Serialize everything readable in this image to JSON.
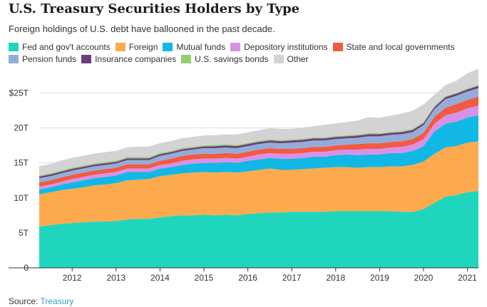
{
  "title": "U.S. Treasury Securities Holders by Type",
  "subtitle": "Foreign holdings of U.S. debt have ballooned in the past decade.",
  "source": {
    "label": "Source:",
    "link": "Treasury"
  },
  "chart_data": {
    "type": "area",
    "stacked": true,
    "x": [
      2011.25,
      2011.5,
      2011.75,
      2012.0,
      2012.25,
      2012.5,
      2012.75,
      2013.0,
      2013.25,
      2013.5,
      2013.75,
      2014.0,
      2014.25,
      2014.5,
      2014.75,
      2015.0,
      2015.25,
      2015.5,
      2015.75,
      2016.0,
      2016.25,
      2016.5,
      2016.75,
      2017.0,
      2017.25,
      2017.5,
      2017.75,
      2018.0,
      2018.25,
      2018.5,
      2018.75,
      2019.0,
      2019.25,
      2019.5,
      2019.75,
      2020.0,
      2020.25,
      2020.5,
      2020.75,
      2021.0,
      2021.25
    ],
    "series": [
      {
        "name": "Fed and gov't accounts",
        "color": "#1fd6bd",
        "values": [
          5.9,
          6.1,
          6.3,
          6.4,
          6.5,
          6.6,
          6.6,
          6.7,
          6.9,
          7.0,
          7.0,
          7.2,
          7.4,
          7.5,
          7.5,
          7.6,
          7.5,
          7.6,
          7.5,
          7.7,
          7.8,
          7.9,
          7.9,
          8.0,
          8.0,
          8.0,
          8.0,
          8.1,
          8.1,
          8.1,
          8.1,
          8.1,
          8.1,
          8.0,
          8.0,
          8.4,
          9.3,
          10.2,
          10.4,
          10.8,
          11.0
        ]
      },
      {
        "name": "Foreign",
        "color": "#fdaa4e",
        "values": [
          4.6,
          4.7,
          4.8,
          4.9,
          5.0,
          5.2,
          5.3,
          5.4,
          5.6,
          5.6,
          5.7,
          5.9,
          5.9,
          6.0,
          6.1,
          6.1,
          6.1,
          6.1,
          6.1,
          6.1,
          6.2,
          6.3,
          6.1,
          6.0,
          6.1,
          6.2,
          6.3,
          6.3,
          6.3,
          6.2,
          6.3,
          6.3,
          6.4,
          6.5,
          6.7,
          6.8,
          7.0,
          7.0,
          7.0,
          7.1,
          7.1
        ]
      },
      {
        "name": "Mutual funds",
        "color": "#12b8e5",
        "values": [
          0.7,
          0.7,
          0.8,
          0.9,
          1.0,
          1.0,
          1.1,
          1.1,
          1.2,
          1.1,
          1.0,
          1.1,
          1.1,
          1.2,
          1.3,
          1.3,
          1.4,
          1.4,
          1.4,
          1.5,
          1.5,
          1.5,
          1.6,
          1.6,
          1.6,
          1.7,
          1.6,
          1.7,
          1.8,
          1.8,
          1.8,
          1.8,
          1.9,
          1.9,
          2.0,
          2.2,
          3.2,
          3.4,
          3.5,
          3.6,
          3.7
        ]
      },
      {
        "name": "Depository institutions",
        "color": "#d991e6",
        "values": [
          0.4,
          0.4,
          0.4,
          0.5,
          0.5,
          0.5,
          0.5,
          0.5,
          0.5,
          0.5,
          0.5,
          0.5,
          0.5,
          0.6,
          0.6,
          0.6,
          0.6,
          0.6,
          0.6,
          0.6,
          0.7,
          0.7,
          0.7,
          0.7,
          0.7,
          0.7,
          0.7,
          0.7,
          0.7,
          0.8,
          0.8,
          0.8,
          0.8,
          0.9,
          0.9,
          1.0,
          1.1,
          1.2,
          1.3,
          1.3,
          1.4
        ]
      },
      {
        "name": "State and local governments",
        "color": "#f25a41",
        "values": [
          0.6,
          0.6,
          0.6,
          0.6,
          0.6,
          0.6,
          0.6,
          0.6,
          0.6,
          0.6,
          0.6,
          0.6,
          0.7,
          0.7,
          0.7,
          0.7,
          0.7,
          0.7,
          0.7,
          0.7,
          0.7,
          0.7,
          0.7,
          0.7,
          0.7,
          0.7,
          0.7,
          0.7,
          0.7,
          0.8,
          0.8,
          0.8,
          0.8,
          0.8,
          0.8,
          0.9,
          1.0,
          1.1,
          1.2,
          1.2,
          1.3
        ]
      },
      {
        "name": "Pension funds",
        "color": "#92aed8",
        "values": [
          0.6,
          0.6,
          0.6,
          0.6,
          0.6,
          0.6,
          0.6,
          0.6,
          0.6,
          0.6,
          0.6,
          0.7,
          0.7,
          0.7,
          0.7,
          0.8,
          0.8,
          0.8,
          0.8,
          0.8,
          0.8,
          0.8,
          0.8,
          0.9,
          0.9,
          0.9,
          0.9,
          0.9,
          0.9,
          0.9,
          1.0,
          1.0,
          1.0,
          1.0,
          1.0,
          1.1,
          1.1,
          1.2,
          1.2,
          1.2,
          1.2
        ]
      },
      {
        "name": "Insurance companies",
        "color": "#6e3d7d",
        "values": [
          0.25,
          0.25,
          0.25,
          0.25,
          0.25,
          0.25,
          0.25,
          0.25,
          0.25,
          0.25,
          0.25,
          0.25,
          0.25,
          0.25,
          0.25,
          0.25,
          0.3,
          0.3,
          0.3,
          0.3,
          0.3,
          0.3,
          0.3,
          0.3,
          0.3,
          0.3,
          0.3,
          0.3,
          0.3,
          0.3,
          0.3,
          0.3,
          0.3,
          0.3,
          0.3,
          0.3,
          0.3,
          0.3,
          0.3,
          0.3,
          0.3
        ]
      },
      {
        "name": "U.S. savings bonds",
        "color": "#93cf71",
        "values": [
          0.18,
          0.18,
          0.18,
          0.18,
          0.18,
          0.18,
          0.18,
          0.18,
          0.18,
          0.18,
          0.18,
          0.18,
          0.17,
          0.17,
          0.17,
          0.17,
          0.17,
          0.17,
          0.16,
          0.16,
          0.16,
          0.16,
          0.16,
          0.16,
          0.16,
          0.15,
          0.15,
          0.15,
          0.15,
          0.15,
          0.15,
          0.15,
          0.15,
          0.15,
          0.15,
          0.15,
          0.14,
          0.14,
          0.14,
          0.14,
          0.14
        ]
      },
      {
        "name": "Other",
        "color": "#d3d3d3",
        "values": [
          1.3,
          1.3,
          1.4,
          1.4,
          1.4,
          1.4,
          1.4,
          1.4,
          1.4,
          1.5,
          1.5,
          1.4,
          1.4,
          1.4,
          1.4,
          1.4,
          1.4,
          1.4,
          1.5,
          1.5,
          1.5,
          1.6,
          1.6,
          1.5,
          1.6,
          1.6,
          1.8,
          1.8,
          1.9,
          2.0,
          2.3,
          2.2,
          2.3,
          2.5,
          2.6,
          2.5,
          1.6,
          1.6,
          1.7,
          2.2,
          2.3
        ]
      }
    ],
    "y_ticks": [
      0,
      5,
      10,
      15,
      20,
      25
    ],
    "y_tick_labels": [
      "0",
      "5T",
      "10T",
      "15T",
      "20T",
      "$25T"
    ],
    "x_ticks": [
      2012,
      2013,
      2014,
      2015,
      2016,
      2017,
      2018,
      2019,
      2020,
      2021
    ],
    "xlim": [
      2011.25,
      2021.25
    ],
    "ylim": [
      0,
      28
    ],
    "grid": true,
    "legend_position": "top"
  }
}
